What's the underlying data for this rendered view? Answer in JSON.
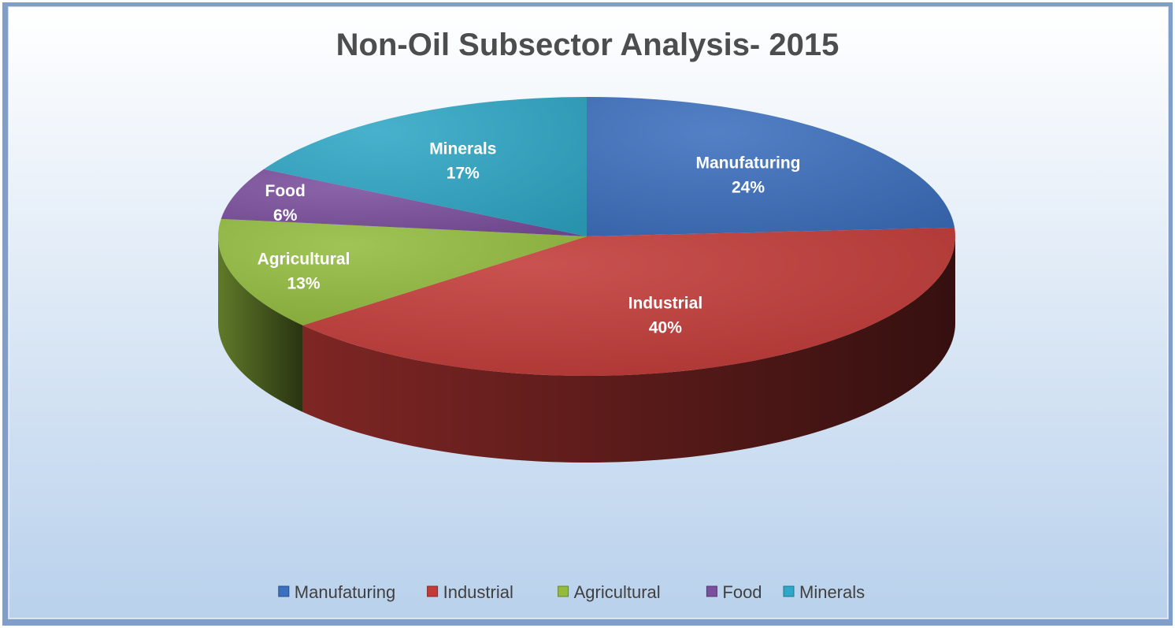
{
  "chart_data": {
    "type": "pie",
    "title": "Non-Oil Subsector Analysis- 2015",
    "three_d": true,
    "legend_position": "bottom",
    "slices": [
      {
        "name": "Manufaturing",
        "value": 24,
        "label": "24%",
        "color": "#3c6fbe"
      },
      {
        "name": "Industrial",
        "value": 40,
        "label": "40%",
        "color": "#c23b38"
      },
      {
        "name": "Agricultural",
        "value": 13,
        "label": "13%",
        "color": "#93bc3f"
      },
      {
        "name": "Food",
        "value": 6,
        "label": "6%",
        "color": "#7b4f9d"
      },
      {
        "name": "Minerals",
        "value": 17,
        "label": "17%",
        "color": "#2fa7c6"
      }
    ]
  },
  "colors": {
    "background_top": "#ffffff",
    "background_bottom": "#b9d1ec",
    "frame_border": "#6e94c4",
    "title_text": "#4d4d4d",
    "label_text": "#ffffff",
    "legend_text": "#404040"
  }
}
